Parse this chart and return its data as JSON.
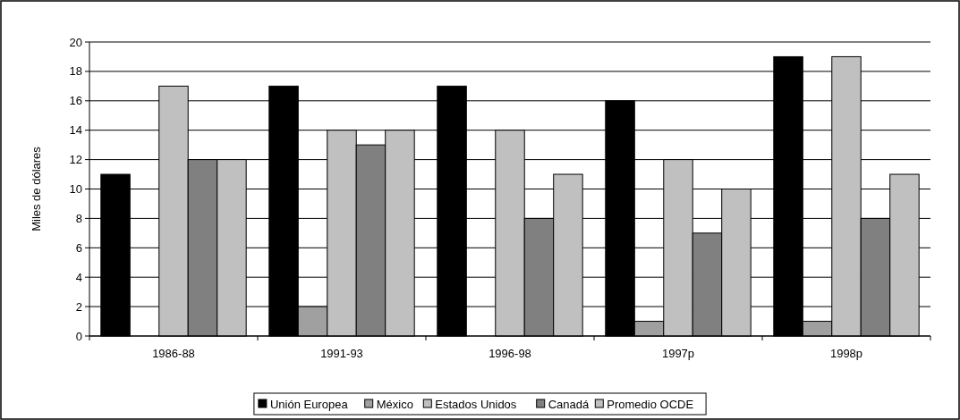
{
  "chart_data": {
    "type": "bar",
    "ylabel": "Miles de dólares",
    "categories": [
      "1986-88",
      "1991-93",
      "1996-98",
      "1997p",
      "1998p"
    ],
    "series": [
      {
        "name": "Unión Europea",
        "color": "#000000",
        "values": [
          11,
          17,
          17,
          16,
          19
        ]
      },
      {
        "name": "México",
        "color": "#a0a0a0",
        "values": [
          null,
          2,
          null,
          1,
          1
        ]
      },
      {
        "name": "Estados Unidos",
        "color": "#c0c0c0",
        "values": [
          17,
          14,
          14,
          12,
          19
        ]
      },
      {
        "name": "Canadá",
        "color": "#808080",
        "values": [
          12,
          13,
          8,
          7,
          8
        ]
      },
      {
        "name": "Promedio OCDE",
        "color": "#c0c0c0",
        "values": [
          12,
          14,
          11,
          10,
          11
        ]
      }
    ],
    "ylim": [
      0,
      20
    ],
    "yticks": [
      0,
      2,
      4,
      6,
      8,
      10,
      12,
      14,
      16,
      18,
      20
    ],
    "grid": "y",
    "legend": "bottom"
  }
}
